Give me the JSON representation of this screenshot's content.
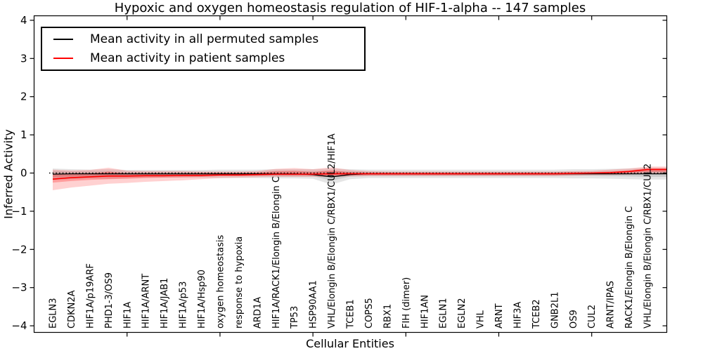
{
  "chart_data": {
    "type": "line",
    "title": "Hypoxic and oxygen homeostasis regulation of HIF-1-alpha -- 147 samples",
    "xlabel": "Cellular Entities",
    "ylabel": "Inferred Activity",
    "ylim": [
      -4,
      4
    ],
    "yticks": [
      4,
      3,
      2,
      1,
      0,
      -1,
      -2,
      -3,
      -4
    ],
    "yticklabels": [
      "4",
      "3",
      "2",
      "1",
      "0",
      "−1",
      "−2",
      "−3",
      "−4"
    ],
    "grid": false,
    "legend_position": "upper left",
    "x_major_tick_indices": [
      4,
      9,
      14,
      19,
      24,
      29
    ],
    "zero_line": {
      "y": 0,
      "style": "dotted",
      "color": "#000000"
    },
    "categories": [
      "EGLN3",
      "CDKN2A",
      "HIF1A/p19ARF",
      "PHD1-3/OS9",
      "HIF1A",
      "HIF1A/ARNT",
      "HIF1A/JAB1",
      "HIF1A/p53",
      "HIF1A/Hsp90",
      "oxygen homeostasis",
      "response to hypoxia",
      "ARD1A",
      "HIF1A/RACK1/Elongin B/Elongin C",
      "TP53",
      "HSP90AA1",
      "VHL/Elongin B/Elongin C/RBX1/CUL2/HIF1A",
      "TCEB1",
      "COPS5",
      "RBX1",
      "FIH (dimer)",
      "HIF1AN",
      "EGLN1",
      "EGLN2",
      "VHL",
      "ARNT",
      "HIF3A",
      "TCEB2",
      "GNB2L1",
      "OS9",
      "CUL2",
      "ARNT/IPAS",
      "RACK1/Elongin B/Elongin C",
      "VHL/Elongin B/Elongin C/RBX1/CUL2"
    ],
    "series": [
      {
        "name": "Mean activity in all permuted samples",
        "color": "#000000",
        "band_fill": "rgba(0,0,0,0.10)",
        "inner_fill": "rgba(0,0,0,0.10)",
        "line_width": 1.3,
        "values": [
          -0.03,
          -0.02,
          -0.02,
          -0.02,
          -0.02,
          -0.02,
          -0.02,
          -0.02,
          -0.02,
          -0.02,
          -0.02,
          -0.02,
          -0.02,
          -0.02,
          -0.04,
          -0.1,
          -0.04,
          -0.02,
          -0.02,
          -0.02,
          -0.02,
          -0.02,
          -0.02,
          -0.02,
          -0.02,
          -0.02,
          -0.02,
          -0.02,
          -0.02,
          -0.02,
          -0.02,
          -0.02,
          -0.02
        ],
        "band_upper": [
          0.12,
          0.1,
          0.09,
          0.1,
          0.08,
          0.08,
          0.08,
          0.08,
          0.08,
          0.09,
          0.09,
          0.09,
          0.1,
          0.1,
          0.1,
          0.12,
          0.1,
          0.09,
          0.09,
          0.09,
          0.09,
          0.09,
          0.09,
          0.09,
          0.09,
          0.09,
          0.09,
          0.09,
          0.1,
          0.1,
          0.11,
          0.12,
          0.13
        ],
        "band_lower": [
          -0.18,
          -0.16,
          -0.14,
          -0.15,
          -0.13,
          -0.12,
          -0.12,
          -0.12,
          -0.12,
          -0.13,
          -0.13,
          -0.13,
          -0.14,
          -0.14,
          -0.15,
          -0.3,
          -0.16,
          -0.13,
          -0.13,
          -0.13,
          -0.13,
          -0.13,
          -0.13,
          -0.13,
          -0.13,
          -0.13,
          -0.13,
          -0.13,
          -0.14,
          -0.14,
          -0.15,
          -0.16,
          -0.17
        ],
        "inner_upper": [
          0.05,
          0.04,
          0.04,
          0.04,
          0.03,
          0.03,
          0.03,
          0.03,
          0.03,
          0.03,
          0.03,
          0.03,
          0.04,
          0.04,
          0.04,
          0.05,
          0.04,
          0.03,
          0.03,
          0.03,
          0.03,
          0.03,
          0.03,
          0.03,
          0.03,
          0.03,
          0.03,
          0.03,
          0.03,
          0.03,
          0.04,
          0.04,
          0.05
        ],
        "inner_lower": [
          -0.1,
          -0.09,
          -0.08,
          -0.08,
          -0.07,
          -0.07,
          -0.07,
          -0.07,
          -0.07,
          -0.07,
          -0.07,
          -0.07,
          -0.08,
          -0.08,
          -0.08,
          -0.2,
          -0.09,
          -0.07,
          -0.07,
          -0.07,
          -0.07,
          -0.07,
          -0.07,
          -0.07,
          -0.07,
          -0.07,
          -0.07,
          -0.07,
          -0.07,
          -0.07,
          -0.08,
          -0.09,
          -0.1
        ]
      },
      {
        "name": "Mean activity in patient samples",
        "color": "#ff0000",
        "band_fill": "rgba(255,0,0,0.18)",
        "inner_fill": "rgba(255,0,0,0.25)",
        "line_width": 1.6,
        "values": [
          -0.16,
          -0.12,
          -0.1,
          -0.08,
          -0.08,
          -0.07,
          -0.07,
          -0.06,
          -0.06,
          -0.05,
          -0.05,
          -0.04,
          -0.03,
          -0.03,
          -0.03,
          -0.02,
          -0.02,
          -0.02,
          -0.02,
          -0.02,
          -0.02,
          -0.02,
          -0.02,
          -0.02,
          -0.02,
          -0.02,
          -0.02,
          -0.02,
          -0.01,
          0.0,
          0.01,
          0.04,
          0.09
        ],
        "band_upper": [
          0.09,
          0.07,
          0.08,
          0.14,
          0.06,
          0.05,
          0.05,
          0.05,
          0.04,
          0.04,
          0.04,
          0.05,
          0.11,
          0.13,
          0.1,
          0.15,
          0.08,
          0.05,
          0.04,
          0.04,
          0.04,
          0.04,
          0.04,
          0.04,
          0.04,
          0.04,
          0.04,
          0.04,
          0.05,
          0.06,
          0.09,
          0.12,
          0.17
        ],
        "band_lower": [
          -0.45,
          -0.38,
          -0.33,
          -0.28,
          -0.26,
          -0.23,
          -0.21,
          -0.19,
          -0.16,
          -0.13,
          -0.12,
          -0.11,
          -0.1,
          -0.1,
          -0.1,
          -0.1,
          -0.09,
          -0.08,
          -0.08,
          -0.08,
          -0.08,
          -0.08,
          -0.08,
          -0.08,
          -0.08,
          -0.08,
          -0.08,
          -0.08,
          -0.07,
          -0.06,
          -0.05,
          -0.04,
          -0.02
        ],
        "inner_upper": [
          -0.04,
          -0.03,
          -0.02,
          0.04,
          -0.01,
          -0.01,
          -0.01,
          -0.01,
          0.0,
          0.0,
          0.0,
          0.01,
          0.05,
          0.06,
          0.03,
          0.07,
          0.02,
          0.01,
          0.01,
          0.01,
          0.01,
          0.01,
          0.01,
          0.01,
          0.01,
          0.01,
          0.01,
          0.01,
          0.02,
          0.02,
          0.04,
          0.07,
          0.13
        ],
        "inner_lower": [
          -0.25,
          -0.21,
          -0.18,
          -0.16,
          -0.15,
          -0.13,
          -0.12,
          -0.11,
          -0.1,
          -0.08,
          -0.08,
          -0.07,
          -0.06,
          -0.06,
          -0.06,
          -0.06,
          -0.05,
          -0.05,
          -0.05,
          -0.05,
          -0.05,
          -0.05,
          -0.05,
          -0.05,
          -0.05,
          -0.05,
          -0.05,
          -0.05,
          -0.04,
          -0.03,
          -0.02,
          0.0,
          0.03
        ]
      }
    ]
  }
}
